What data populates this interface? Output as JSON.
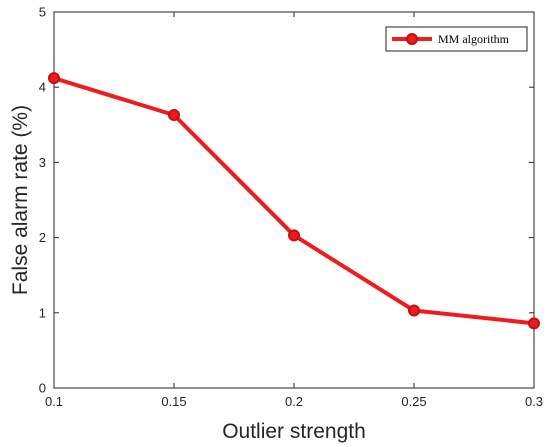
{
  "chart_data": {
    "type": "line",
    "x": [
      0.1,
      0.15,
      0.2,
      0.25,
      0.3
    ],
    "series": [
      {
        "name": "MM algorithm",
        "values": [
          4.12,
          3.63,
          2.03,
          1.03,
          0.86
        ],
        "color": "#ee1c1c"
      }
    ],
    "xlabel": "Outlier strength",
    "ylabel": "False alarm rate (%)",
    "xlim": [
      0.1,
      0.3
    ],
    "ylim": [
      0,
      5
    ],
    "xticks": [
      "0.1",
      "0.15",
      "0.2",
      "0.25",
      "0.3"
    ],
    "yticks": [
      "0",
      "1",
      "2",
      "3",
      "4",
      "5"
    ],
    "grid": false,
    "legend_position": "top-right"
  }
}
